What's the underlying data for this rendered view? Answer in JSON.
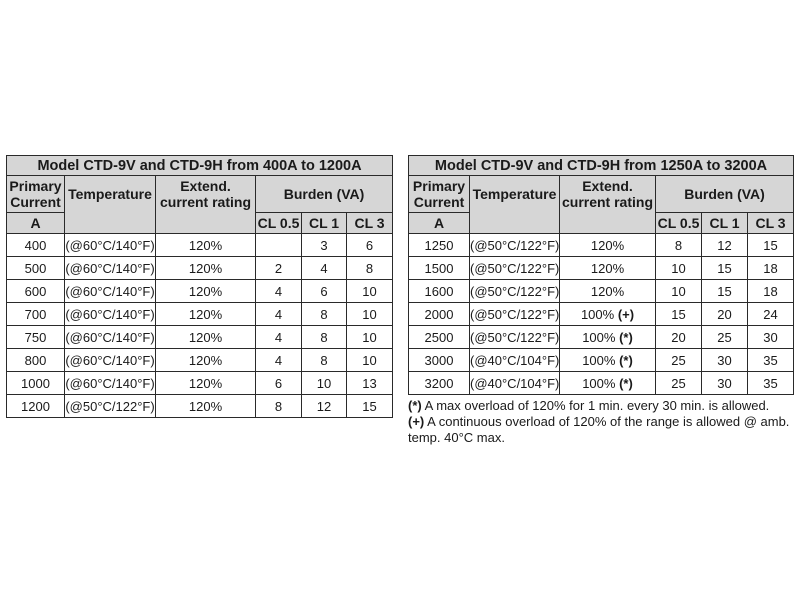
{
  "tables": [
    {
      "title": "Model CTD-9V and CTD-9H from 400A to 1200A",
      "headers": {
        "primary": "Primary Current",
        "temperature": "Temperature",
        "extend": "Extend. current rating",
        "burden": "Burden (VA)",
        "unit": "A",
        "cl05": "CL 0.5",
        "cl1": "CL 1",
        "cl3": "CL 3"
      },
      "rows": [
        {
          "current": "400",
          "temp": "(@60°C/140°F)",
          "ext": "120%",
          "mark": "",
          "cl05": "",
          "cl1": "3",
          "cl3": "6"
        },
        {
          "current": "500",
          "temp": "(@60°C/140°F)",
          "ext": "120%",
          "mark": "",
          "cl05": "2",
          "cl1": "4",
          "cl3": "8"
        },
        {
          "current": "600",
          "temp": "(@60°C/140°F)",
          "ext": "120%",
          "mark": "",
          "cl05": "4",
          "cl1": "6",
          "cl3": "10"
        },
        {
          "current": "700",
          "temp": "(@60°C/140°F)",
          "ext": "120%",
          "mark": "",
          "cl05": "4",
          "cl1": "8",
          "cl3": "10"
        },
        {
          "current": "750",
          "temp": "(@60°C/140°F)",
          "ext": "120%",
          "mark": "",
          "cl05": "4",
          "cl1": "8",
          "cl3": "10"
        },
        {
          "current": "800",
          "temp": "(@60°C/140°F)",
          "ext": "120%",
          "mark": "",
          "cl05": "4",
          "cl1": "8",
          "cl3": "10"
        },
        {
          "current": "1000",
          "temp": "(@60°C/140°F)",
          "ext": "120%",
          "mark": "",
          "cl05": "6",
          "cl1": "10",
          "cl3": "13"
        },
        {
          "current": "1200",
          "temp": "(@50°C/122°F)",
          "ext": "120%",
          "mark": "",
          "cl05": "8",
          "cl1": "12",
          "cl3": "15"
        }
      ]
    },
    {
      "title": "Model CTD-9V and CTD-9H from 1250A to 3200A",
      "headers": {
        "primary": "Primary Current",
        "temperature": "Temperature",
        "extend": "Extend. current rating",
        "burden": "Burden (VA)",
        "unit": "A",
        "cl05": "CL 0.5",
        "cl1": "CL 1",
        "cl3": "CL 3"
      },
      "rows": [
        {
          "current": "1250",
          "temp": "(@50°C/122°F)",
          "ext": "120%",
          "mark": "",
          "cl05": "8",
          "cl1": "12",
          "cl3": "15"
        },
        {
          "current": "1500",
          "temp": "(@50°C/122°F)",
          "ext": "120%",
          "mark": "",
          "cl05": "10",
          "cl1": "15",
          "cl3": "18"
        },
        {
          "current": "1600",
          "temp": "(@50°C/122°F)",
          "ext": "120%",
          "mark": "",
          "cl05": "10",
          "cl1": "15",
          "cl3": "18"
        },
        {
          "current": "2000",
          "temp": "(@50°C/122°F)",
          "ext": "100%",
          "mark": "(+)",
          "cl05": "15",
          "cl1": "20",
          "cl3": "24"
        },
        {
          "current": "2500",
          "temp": "(@50°C/122°F)",
          "ext": "100%",
          "mark": "(*)",
          "cl05": "20",
          "cl1": "25",
          "cl3": "30"
        },
        {
          "current": "3000",
          "temp": "(@40°C/104°F)",
          "ext": "100%",
          "mark": "(*)",
          "cl05": "25",
          "cl1": "30",
          "cl3": "35"
        },
        {
          "current": "3200",
          "temp": "(@40°C/104°F)",
          "ext": "100%",
          "mark": "(*)",
          "cl05": "25",
          "cl1": "30",
          "cl3": "35"
        }
      ]
    }
  ],
  "notes": [
    {
      "mark": "(*)",
      "text": "A max overload of 120% for 1 min. every 30 min. is allowed."
    },
    {
      "mark": "(+)",
      "text": "A continuous overload of 120% of the range is allowed @ amb. temp. 40°C max."
    }
  ]
}
